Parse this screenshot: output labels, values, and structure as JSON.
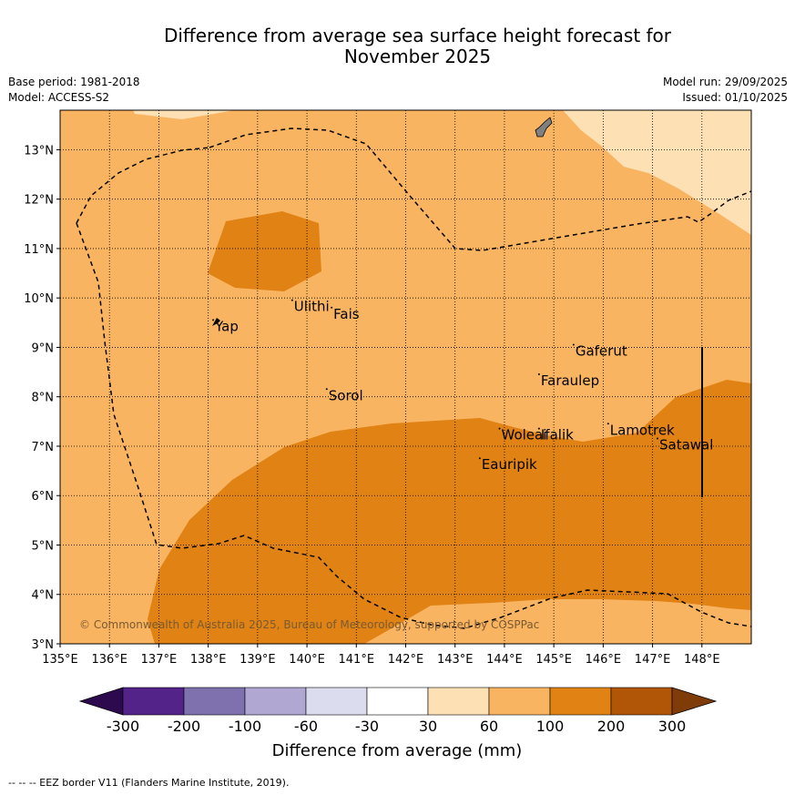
{
  "title": {
    "line1": "Difference from average sea surface height forecast for",
    "line2": "November 2025"
  },
  "meta": {
    "base_period": "Base period: 1981-2018",
    "model": "Model: ACCESS-S2",
    "model_run": "Model run: 29/09/2025",
    "issued": "Issued: 01/10/2025"
  },
  "map": {
    "lon_labels": [
      "135°E",
      "136°E",
      "137°E",
      "138°E",
      "139°E",
      "140°E",
      "141°E",
      "142°E",
      "143°E",
      "144°E",
      "145°E",
      "146°E",
      "147°E",
      "148°E"
    ],
    "lat_labels": [
      "3°N",
      "4°N",
      "5°N",
      "6°N",
      "7°N",
      "8°N",
      "9°N",
      "10°N",
      "11°N",
      "12°N",
      "13°N"
    ],
    "places": [
      {
        "name": "Yap",
        "lon": 138.1,
        "lat": 9.5
      },
      {
        "name": "Ulithi",
        "lon": 139.7,
        "lat": 9.9
      },
      {
        "name": "Fais",
        "lon": 140.5,
        "lat": 9.75
      },
      {
        "name": "Sorol",
        "lon": 140.4,
        "lat": 8.1
      },
      {
        "name": "Gaferut",
        "lon": 145.4,
        "lat": 9.0
      },
      {
        "name": "Faraulep",
        "lon": 144.7,
        "lat": 8.4
      },
      {
        "name": "Woleai",
        "lon": 143.9,
        "lat": 7.3
      },
      {
        "name": "Ifalik",
        "lon": 144.7,
        "lat": 7.3
      },
      {
        "name": "Lamotrek",
        "lon": 146.1,
        "lat": 7.4
      },
      {
        "name": "Satawal",
        "lon": 147.1,
        "lat": 7.1
      },
      {
        "name": "Eauripik",
        "lon": 143.5,
        "lat": 6.7
      }
    ],
    "copyright": "© Commonwealth of Australia 2025, Bureau of Meteorology, supported by COSPPac"
  },
  "colorbar": {
    "title": "Difference from average (mm)",
    "tick_labels": [
      "-300",
      "-200",
      "-100",
      "-60",
      "-30",
      "30",
      "60",
      "100",
      "200",
      "300"
    ],
    "colors": [
      "#2d0a4e",
      "#54238a",
      "#7e71ad",
      "#b0a8d3",
      "#dcdcef",
      "#ffffff",
      "#fee0b5",
      "#f9b462",
      "#e08214",
      "#b15507",
      "#7f3b08"
    ]
  },
  "footnote": "-- -- -- EEZ border V11 (Flanders Marine Institute, 2019)."
}
